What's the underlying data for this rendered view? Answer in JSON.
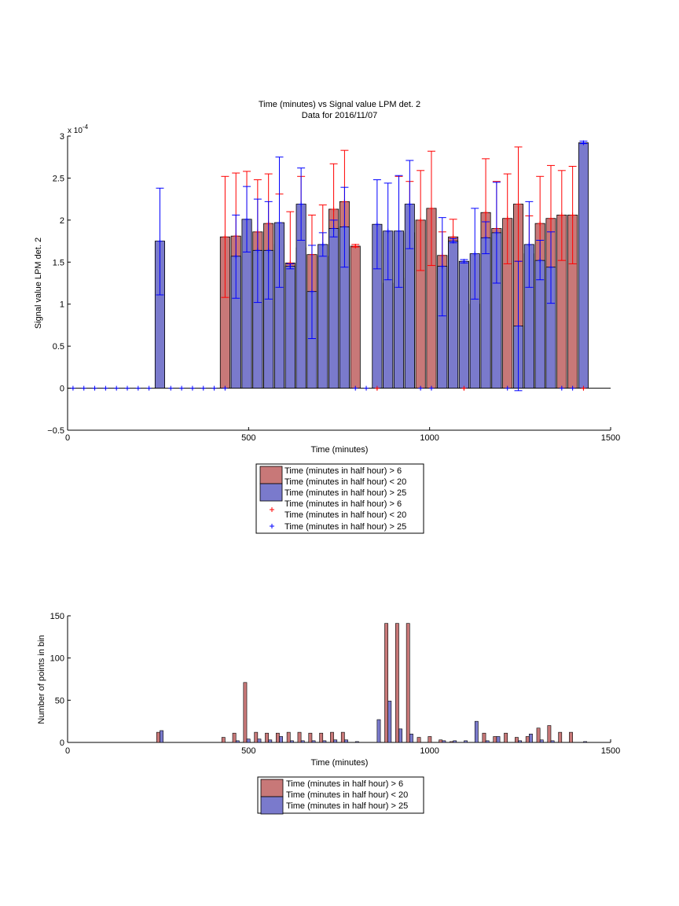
{
  "colors": {
    "red_bar": "#c87878",
    "blue_bar": "#7a7acc",
    "red_marker": "#ff0000",
    "blue_marker": "#0000ff",
    "axis": "#000000"
  },
  "legend_top": {
    "bar_red": "Time (minutes in half hour) > 6",
    "bar_red2": "Time (minutes in half hour) < 20",
    "bar_blue": "Time (minutes in half hour) > 25",
    "mark_red": "Time (minutes in half hour) > 6",
    "mark_red2": "Time (minutes in half hour) < 20",
    "mark_blue": "Time (minutes in half hour) > 25"
  },
  "legend_bottom": {
    "bar_red": "Time (minutes in half hour) > 6",
    "bar_red2": "Time (minutes in half hour) < 20",
    "bar_blue": "Time (minutes in half hour) > 25"
  },
  "chart_data": [
    {
      "type": "bar",
      "title": "Time (minutes) vs Signal value LPM det. 2",
      "subtitle": "Data for 2016/11/07",
      "xlabel": "Time (minutes)",
      "ylabel": "Signal value LPM det. 2",
      "exponent_label": "x 10",
      "exponent_power": "-4",
      "xlim": [
        0,
        1500
      ],
      "ylim": [
        -0.5,
        3
      ],
      "xticks": [
        "0",
        "500",
        "1000",
        "1500"
      ],
      "yticks": [
        "−0.5",
        "0",
        "0.5",
        "1",
        "1.5",
        "2",
        "2.5",
        "3"
      ],
      "grid": false,
      "legend_position": "below",
      "series": [
        {
          "name": "Time (minutes in half hour) > 6 / < 20",
          "color": "red",
          "bars": [
            {
              "x": 435,
              "y": 1.8,
              "lo": 1.08,
              "hi": 2.52
            },
            {
              "x": 465,
              "y": 1.81,
              "lo": 1.06,
              "hi": 2.56
            },
            {
              "x": 495,
              "y": 1.98,
              "lo": 1.4,
              "hi": 2.58
            },
            {
              "x": 525,
              "y": 1.86,
              "lo": 1.24,
              "hi": 2.48
            },
            {
              "x": 555,
              "y": 1.96,
              "lo": 1.37,
              "hi": 2.55
            },
            {
              "x": 585,
              "y": 1.71,
              "lo": 1.1,
              "hi": 2.31
            },
            {
              "x": 615,
              "y": 1.49,
              "lo": 0.89,
              "hi": 2.1
            },
            {
              "x": 645,
              "y": 1.67,
              "lo": 0.82,
              "hi": 2.52
            },
            {
              "x": 675,
              "y": 1.59,
              "lo": 1.13,
              "hi": 2.06
            },
            {
              "x": 705,
              "y": 1.57,
              "lo": 0.96,
              "hi": 2.18
            },
            {
              "x": 735,
              "y": 2.13,
              "lo": 1.59,
              "hi": 2.67
            },
            {
              "x": 765,
              "y": 2.22,
              "lo": 1.6,
              "hi": 2.83
            },
            {
              "x": 795,
              "y": 1.69,
              "lo": 1.68,
              "hi": 1.71
            },
            {
              "x": 855,
              "y": 0,
              "lo": 0,
              "hi": 0
            },
            {
              "x": 885,
              "y": 1.25,
              "lo": 1.24,
              "hi": 1.26
            },
            {
              "x": 915,
              "y": 1.31,
              "lo": 1.07,
              "hi": 2.52
            },
            {
              "x": 945,
              "y": 1.85,
              "lo": 1.25,
              "hi": 2.46
            },
            {
              "x": 975,
              "y": 2.0,
              "lo": 1.4,
              "hi": 2.59
            },
            {
              "x": 1005,
              "y": 2.14,
              "lo": 1.46,
              "hi": 2.82
            },
            {
              "x": 1035,
              "y": 1.58,
              "lo": 1.3,
              "hi": 1.86
            },
            {
              "x": 1065,
              "y": 1.8,
              "lo": 1.59,
              "hi": 2.01
            },
            {
              "x": 1095,
              "y": 0,
              "lo": 0,
              "hi": 0
            },
            {
              "x": 1125,
              "y": 1.0,
              "lo": 0.99,
              "hi": 1.01
            },
            {
              "x": 1155,
              "y": 2.09,
              "lo": 1.45,
              "hi": 2.73
            },
            {
              "x": 1185,
              "y": 1.9,
              "lo": 1.34,
              "hi": 2.46
            },
            {
              "x": 1215,
              "y": 2.02,
              "lo": 1.48,
              "hi": 2.55
            },
            {
              "x": 1245,
              "y": 2.19,
              "lo": 1.51,
              "hi": 2.87
            },
            {
              "x": 1275,
              "y": 1.6,
              "lo": 1.44,
              "hi": 2.05
            },
            {
              "x": 1305,
              "y": 1.96,
              "lo": 1.39,
              "hi": 2.52
            },
            {
              "x": 1335,
              "y": 2.02,
              "lo": 1.38,
              "hi": 2.65
            },
            {
              "x": 1365,
              "y": 2.06,
              "lo": 1.52,
              "hi": 2.59
            },
            {
              "x": 1395,
              "y": 2.06,
              "lo": 1.48,
              "hi": 2.64
            },
            {
              "x": 1425,
              "y": 0,
              "lo": 0,
              "hi": 0
            }
          ]
        },
        {
          "name": "Time (minutes in half hour) > 25",
          "color": "blue",
          "bars": [
            {
              "x": 255,
              "y": 1.75,
              "lo": 1.11,
              "hi": 2.38
            },
            {
              "x": 465,
              "y": 1.57,
              "lo": 1.07,
              "hi": 2.06
            },
            {
              "x": 495,
              "y": 2.01,
              "lo": 1.62,
              "hi": 2.4
            },
            {
              "x": 525,
              "y": 1.64,
              "lo": 1.02,
              "hi": 2.25
            },
            {
              "x": 555,
              "y": 1.64,
              "lo": 1.06,
              "hi": 2.22
            },
            {
              "x": 585,
              "y": 1.97,
              "lo": 1.2,
              "hi": 2.75
            },
            {
              "x": 615,
              "y": 1.45,
              "lo": 1.42,
              "hi": 1.48
            },
            {
              "x": 645,
              "y": 2.19,
              "lo": 1.76,
              "hi": 2.62
            },
            {
              "x": 675,
              "y": 1.15,
              "lo": 0.59,
              "hi": 1.7
            },
            {
              "x": 705,
              "y": 1.71,
              "lo": 1.57,
              "hi": 1.85
            },
            {
              "x": 735,
              "y": 1.9,
              "lo": 1.8,
              "hi": 2.0
            },
            {
              "x": 765,
              "y": 1.92,
              "lo": 1.44,
              "hi": 2.39
            },
            {
              "x": 855,
              "y": 1.95,
              "lo": 1.42,
              "hi": 2.48
            },
            {
              "x": 885,
              "y": 1.87,
              "lo": 1.29,
              "hi": 2.44
            },
            {
              "x": 915,
              "y": 1.87,
              "lo": 1.2,
              "hi": 2.53
            },
            {
              "x": 945,
              "y": 2.19,
              "lo": 1.66,
              "hi": 2.71
            },
            {
              "x": 1035,
              "y": 1.45,
              "lo": 0.86,
              "hi": 2.03
            },
            {
              "x": 1065,
              "y": 1.75,
              "lo": 1.73,
              "hi": 1.78
            },
            {
              "x": 1095,
              "y": 1.51,
              "lo": 1.49,
              "hi": 1.53
            },
            {
              "x": 1125,
              "y": 1.6,
              "lo": 1.06,
              "hi": 2.14
            },
            {
              "x": 1155,
              "y": 1.79,
              "lo": 1.6,
              "hi": 1.98
            },
            {
              "x": 1185,
              "y": 1.85,
              "lo": 1.25,
              "hi": 2.45
            },
            {
              "x": 1245,
              "y": 0.74,
              "lo": -0.03,
              "hi": 1.51
            },
            {
              "x": 1275,
              "y": 1.71,
              "lo": 1.2,
              "hi": 2.22
            },
            {
              "x": 1305,
              "y": 1.52,
              "lo": 1.29,
              "hi": 1.76
            },
            {
              "x": 1335,
              "y": 1.44,
              "lo": 1.01,
              "hi": 1.86
            },
            {
              "x": 1425,
              "y": 2.92,
              "lo": 2.91,
              "hi": 2.94
            }
          ]
        }
      ],
      "zero_markers_blue_x": [
        15,
        45,
        75,
        105,
        135,
        165,
        195,
        225,
        285,
        315,
        345,
        375,
        405,
        435,
        795,
        825,
        975,
        1005,
        1215,
        1365,
        1395
      ],
      "zero_markers_red_x": [
        855,
        1095,
        1425
      ]
    },
    {
      "type": "bar",
      "title": "",
      "xlabel": "Time (minutes)",
      "ylabel": "Number of points in bin",
      "xlim": [
        0,
        1500
      ],
      "ylim": [
        0,
        150
      ],
      "xticks": [
        "0",
        "500",
        "1000",
        "1500"
      ],
      "yticks": [
        "0",
        "50",
        "100",
        "150"
      ],
      "grid": false,
      "legend_position": "below",
      "categories": [
        255,
        435,
        465,
        495,
        525,
        555,
        585,
        615,
        645,
        675,
        705,
        735,
        765,
        795,
        855,
        885,
        915,
        945,
        975,
        1005,
        1035,
        1065,
        1095,
        1125,
        1155,
        1185,
        1215,
        1245,
        1275,
        1305,
        1335,
        1365,
        1395,
        1425
      ],
      "series": [
        {
          "name": "Time (minutes in half hour) > 6 / < 20",
          "color": "red",
          "values": [
            12,
            6,
            11,
            71,
            12,
            11,
            11,
            12,
            12,
            11,
            11,
            12,
            12,
            0,
            0,
            141,
            141,
            141,
            6,
            7,
            3,
            1,
            0,
            0,
            11,
            7,
            11,
            6,
            7,
            17,
            20,
            12,
            12,
            0
          ]
        },
        {
          "name": "Time (minutes in half hour) > 25",
          "color": "blue",
          "values": [
            14,
            0,
            2,
            4,
            4,
            3,
            7,
            2,
            2,
            2,
            2,
            3,
            3,
            1,
            27,
            49,
            16,
            10,
            0,
            0,
            2,
            2,
            2,
            25,
            2,
            7,
            0,
            2,
            10,
            3,
            2,
            0,
            0,
            1
          ]
        }
      ]
    }
  ]
}
